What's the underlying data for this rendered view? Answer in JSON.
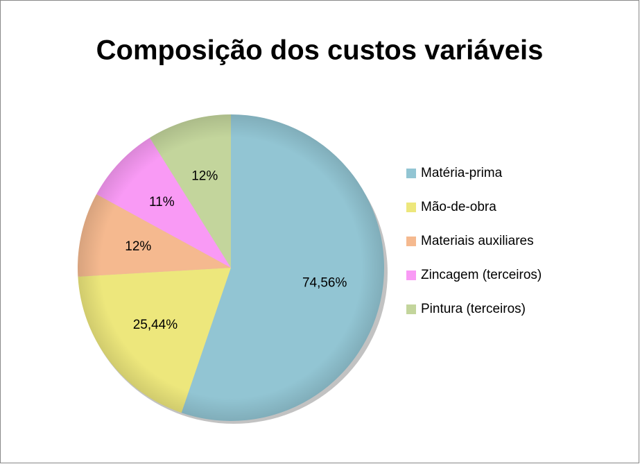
{
  "chart_data": {
    "type": "pie",
    "title": "Composição dos custos variáveis",
    "categories": [
      "Matéria-prima",
      "Mão-de-obra",
      "Materiais auxiliares",
      "Zincagem (terceiros)",
      "Pintura (terceiros)"
    ],
    "values": [
      74.56,
      25.44,
      12,
      11,
      12
    ],
    "value_labels": [
      "74,56%",
      "25,44%",
      "12%",
      "11%",
      "12%"
    ],
    "colors": [
      "#92c5d3",
      "#ede77c",
      "#f5b98f",
      "#f99af5",
      "#c3d59c"
    ],
    "legend": "right"
  }
}
